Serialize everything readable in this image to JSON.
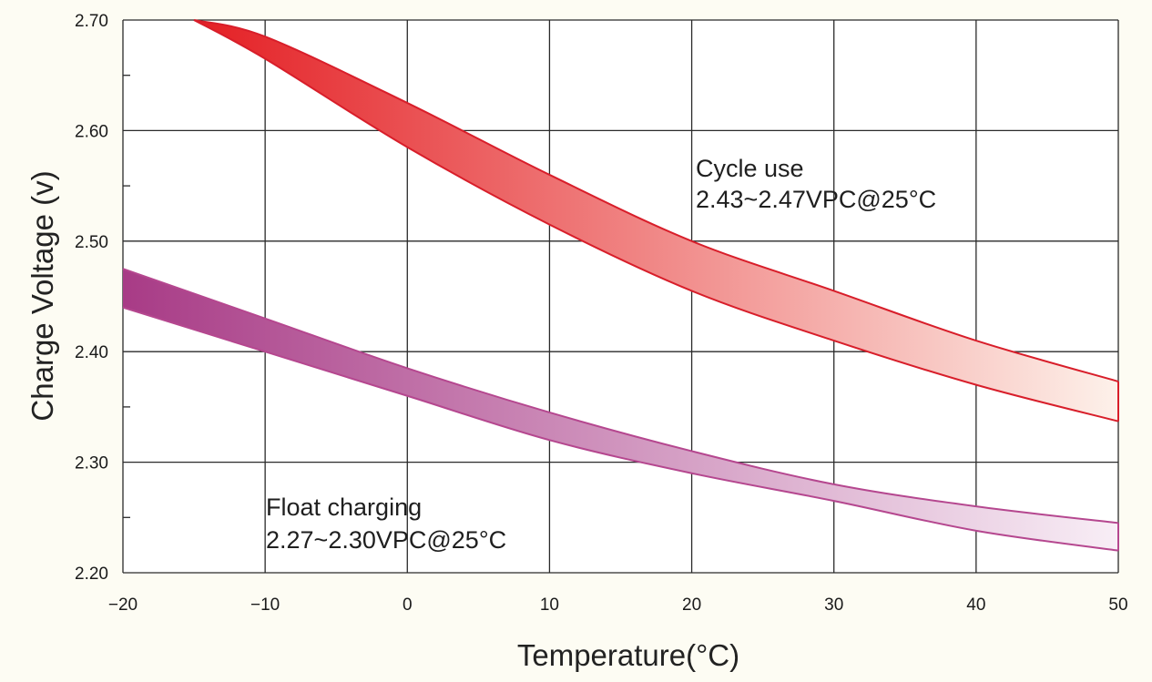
{
  "chart_data": {
    "type": "area",
    "title": "",
    "xlabel": "Temperature(°C)",
    "ylabel": "Charge Voltage  (v)",
    "xlim": [
      -20,
      50
    ],
    "ylim": [
      2.2,
      2.7
    ],
    "grid": true,
    "x_ticks": [
      -20,
      -10,
      0,
      10,
      20,
      30,
      40,
      50
    ],
    "x_tick_labels": [
      "−20",
      "−10",
      "0",
      "10",
      "20",
      "30",
      "40",
      "50"
    ],
    "y_ticks": [
      2.2,
      2.3,
      2.4,
      2.5,
      2.6,
      2.7
    ],
    "y_tick_labels": [
      "2.20",
      "2.30",
      "2.40",
      "2.50",
      "2.60",
      "2.70"
    ],
    "bands": [
      {
        "id": "cycle",
        "annotation_lines": [
          "Cycle use",
          "2.43~2.47VPC@25°C"
        ],
        "color_edge": "#d81e2a",
        "color_fill_start": "#e41f24",
        "color_fill_end": "#fdf1ea",
        "x": [
          -15,
          -10,
          0,
          10,
          20,
          30,
          40,
          50
        ],
        "upper": [
          2.7,
          2.685,
          2.625,
          2.56,
          2.5,
          2.455,
          2.41,
          2.373
        ],
        "lower": [
          2.7,
          2.665,
          2.585,
          2.515,
          2.455,
          2.41,
          2.37,
          2.337
        ]
      },
      {
        "id": "float",
        "annotation_lines": [
          "Float charging",
          "2.27~2.30VPC@25°C"
        ],
        "color_edge": "#b5478f",
        "color_fill_start": "#a83b86",
        "color_fill_end": "#f8eef6",
        "x": [
          -20,
          -10,
          0,
          10,
          20,
          30,
          40,
          50
        ],
        "upper": [
          2.475,
          2.43,
          2.385,
          2.345,
          2.31,
          2.28,
          2.26,
          2.245
        ],
        "lower": [
          2.44,
          2.4,
          2.36,
          2.32,
          2.29,
          2.265,
          2.238,
          2.22
        ]
      }
    ]
  }
}
